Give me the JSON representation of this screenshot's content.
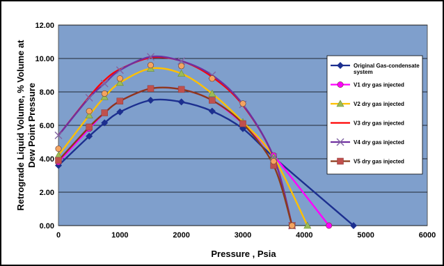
{
  "chart_data": {
    "type": "line",
    "xlabel": "Pressure , Psia",
    "ylabel_line1": "Retrograde Liquid Volume, % Volume at",
    "ylabel_line2": "Dew Point Pressure",
    "xlim": [
      0,
      6000
    ],
    "ylim": [
      0,
      12
    ],
    "x_ticks": [
      0,
      1000,
      2000,
      3000,
      4000,
      5000,
      6000
    ],
    "y_ticks": [
      "0.00",
      "2.00",
      "4.00",
      "6.00",
      "8.00",
      "10.00",
      "12.00"
    ],
    "y_tick_values": [
      0,
      2,
      4,
      6,
      8,
      10,
      12
    ],
    "grid": "horizontal",
    "legend_position": "right",
    "plot_background": "#7f9fcc",
    "series": [
      {
        "name_line1": "Original Gas-condensate",
        "name_line2": "system",
        "color": "#1c2f8f",
        "marker": "diamond",
        "points": [
          [
            0,
            3.6
          ],
          [
            500,
            5.35
          ],
          [
            750,
            6.15
          ],
          [
            1000,
            6.8
          ],
          [
            1500,
            7.5
          ],
          [
            2000,
            7.4
          ],
          [
            2500,
            6.85
          ],
          [
            3000,
            5.8
          ],
          [
            3500,
            4.1
          ],
          [
            4800,
            0.0
          ]
        ]
      },
      {
        "name_line1": "V1 dry gas injected",
        "name_line2": "",
        "color": "#ff00ff",
        "marker": "circle",
        "points": [
          [
            0,
            3.8
          ],
          [
            500,
            5.8
          ],
          [
            750,
            6.75
          ],
          [
            1000,
            7.45
          ],
          [
            1500,
            8.2
          ],
          [
            2000,
            8.15
          ],
          [
            2500,
            7.5
          ],
          [
            3000,
            6.1
          ],
          [
            3500,
            4.2
          ],
          [
            4400,
            0.0
          ]
        ]
      },
      {
        "name_line1": "V2 dry gas injected",
        "name_line2": "",
        "color": "#ffc000",
        "marker": "triangle",
        "points": [
          [
            0,
            4.2
          ],
          [
            500,
            6.6
          ],
          [
            750,
            7.7
          ],
          [
            1000,
            8.55
          ],
          [
            1500,
            9.4
          ],
          [
            2000,
            9.1
          ],
          [
            2500,
            7.9
          ],
          [
            3000,
            6.2
          ],
          [
            3500,
            4.1
          ],
          [
            4050,
            0.0
          ]
        ]
      },
      {
        "name_line1": "V3 dry gas injected",
        "name_line2": "",
        "color": "#ff0000",
        "marker": "none",
        "points": [
          [
            0,
            5.4
          ],
          [
            500,
            7.7
          ],
          [
            750,
            8.7
          ],
          [
            1000,
            9.35
          ],
          [
            1500,
            10.05
          ],
          [
            2000,
            9.85
          ],
          [
            2500,
            8.9
          ],
          [
            3000,
            7.2
          ],
          [
            3500,
            4.1
          ],
          [
            3800,
            0.0
          ]
        ]
      },
      {
        "name_line1": "V4 dry gas injected",
        "name_line2": "",
        "color": "#7030a0",
        "marker": "x",
        "points": [
          [
            0,
            5.4
          ],
          [
            500,
            7.65
          ],
          [
            750,
            8.5
          ],
          [
            1000,
            9.3
          ],
          [
            1500,
            10.1
          ],
          [
            2000,
            9.85
          ],
          [
            2500,
            9.0
          ],
          [
            3000,
            7.25
          ],
          [
            3500,
            4.1
          ],
          [
            3800,
            0.0
          ]
        ]
      },
      {
        "name_line1": "V5 dry gas injected",
        "name_line2": "",
        "color": "#8b3a1a",
        "marker": "square",
        "points": [
          [
            0,
            3.9
          ],
          [
            500,
            5.9
          ],
          [
            750,
            6.75
          ],
          [
            1000,
            7.45
          ],
          [
            1500,
            8.2
          ],
          [
            2000,
            8.15
          ],
          [
            2500,
            7.5
          ],
          [
            3000,
            6.1
          ],
          [
            3500,
            3.6
          ],
          [
            3800,
            0.0
          ]
        ]
      }
    ],
    "overlay_markers": [
      {
        "color": "#f4a460",
        "shape": "circle",
        "points": [
          [
            0,
            4.6
          ],
          [
            500,
            6.85
          ],
          [
            750,
            7.9
          ],
          [
            1000,
            8.8
          ],
          [
            1500,
            9.6
          ],
          [
            2000,
            9.55
          ],
          [
            2500,
            8.8
          ],
          [
            3000,
            7.3
          ],
          [
            3500,
            3.85
          ],
          [
            3800,
            0.0
          ]
        ]
      }
    ]
  }
}
